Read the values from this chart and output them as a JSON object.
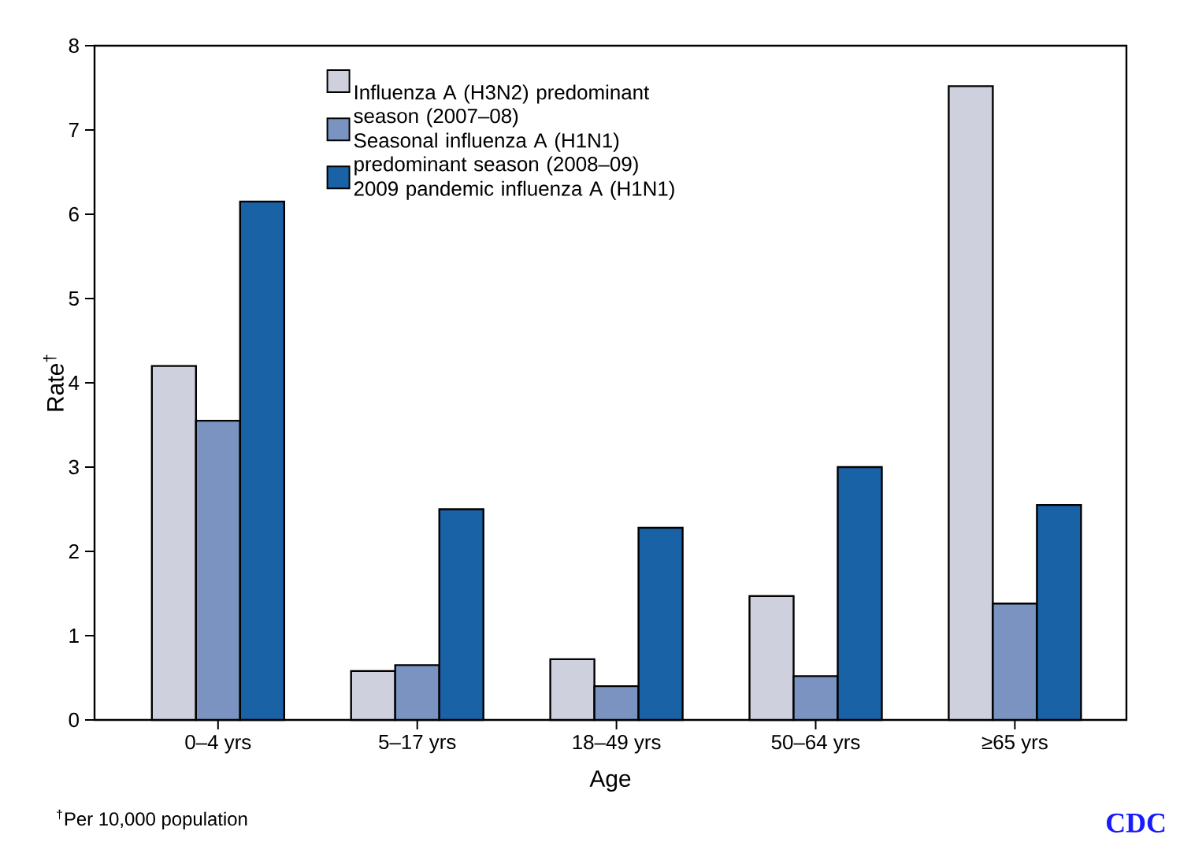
{
  "chart_data": {
    "type": "bar",
    "xlabel": "Age",
    "ylabel": "Rate$^{†}$",
    "categories": [
      "0–4 yrs",
      "5–17 yrs",
      "18–49 yrs",
      "50–64 yrs",
      "≥65 yrs"
    ],
    "series": [
      {
        "name": "Influenza A (H3N2) predominant season (2007–08)",
        "color": "#cfd0de",
        "values": [
          4.2,
          0.58,
          0.72,
          1.47,
          7.52
        ]
      },
      {
        "name": "Seasonal influenza A (H1N1) predominant season (2008–09)",
        "color": "#7b93c0",
        "values": [
          3.55,
          0.65,
          0.4,
          0.52,
          1.38
        ]
      },
      {
        "name": "2009 pandemic influenza A (H1N1)",
        "color": "#1a62a6",
        "values": [
          6.15,
          2.5,
          2.28,
          3.0,
          2.55
        ]
      }
    ],
    "ylim": [
      0,
      8
    ],
    "yticks": [
      0,
      1,
      2,
      3,
      4,
      5,
      6,
      7,
      8
    ],
    "grid": false,
    "legend": "top left",
    "annotations": [
      "$^{†}$Per 10,000 population",
      "CDC"
    ]
  }
}
